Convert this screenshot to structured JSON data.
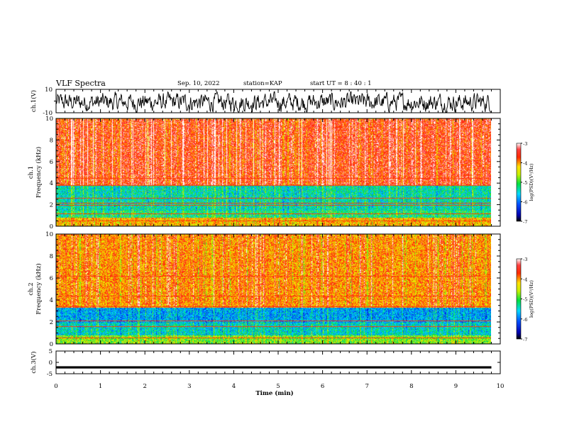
{
  "header": {
    "title": "VLF Spectra",
    "date": "Sep. 10, 2022",
    "station": "station=KAP",
    "start": "start UT =  8 : 40 : 1"
  },
  "chart_data": [
    {
      "type": "line",
      "panel": "ch1-waveform",
      "ylabel": "ch.1(V)",
      "ylim": [
        -10,
        10
      ],
      "ytick_labels": [
        "10",
        "-10"
      ],
      "x_range_min": [
        0,
        9.8
      ],
      "description_values": "noisy waveform fluctuating roughly between -9 and 7 V"
    },
    {
      "type": "heatmap",
      "panel": "ch1-spectrogram",
      "ylabel": "ch.1\nFrequency (kHz)",
      "ylim": [
        0,
        10
      ],
      "ytick_labels": [
        "0",
        "2",
        "4",
        "6",
        "8",
        "10"
      ],
      "colorbar": {
        "label": "log(PSD)(V²/Hz)",
        "range": [
          -7,
          -3
        ],
        "tick_labels": [
          "-3",
          "-4",
          "-5",
          "-6",
          "-7"
        ]
      },
      "bands": [
        {
          "f_from": 0,
          "f_to": 0.8,
          "level": -4.2
        },
        {
          "f_from": 0.8,
          "f_to": 1.5,
          "level": -5.2
        },
        {
          "f_from": 1.5,
          "f_to": 3.8,
          "level": -5.4
        },
        {
          "f_from": 3.8,
          "f_to": 10,
          "level": -3.6
        }
      ],
      "horizontal_lines_khz": [
        0.5,
        1.2,
        2.0,
        2.2,
        2.6,
        3.8,
        4.5
      ]
    },
    {
      "type": "heatmap",
      "panel": "ch2-spectrogram",
      "ylabel": "ch.2\nFrequency (kHz)",
      "ylim": [
        0,
        10
      ],
      "ytick_labels": [
        "0",
        "2",
        "4",
        "6",
        "8",
        "10"
      ],
      "colorbar": {
        "label": "log(PSD)(V²/Hz)",
        "range": [
          -7,
          -3
        ],
        "tick_labels": [
          "-3",
          "-4",
          "-5",
          "-6",
          "-7"
        ]
      },
      "bands": [
        {
          "f_from": 0,
          "f_to": 0.8,
          "level": -4.8
        },
        {
          "f_from": 0.8,
          "f_to": 2.0,
          "level": -5.5
        },
        {
          "f_from": 2.0,
          "f_to": 3.3,
          "level": -5.8
        },
        {
          "f_from": 3.3,
          "f_to": 10,
          "level": -4.0
        }
      ],
      "horizontal_lines_khz": [
        0.6,
        1.6,
        2.1,
        3.4,
        4.4,
        6.2
      ]
    },
    {
      "type": "line",
      "panel": "ch3-waveform",
      "ylabel": "ch.3(V)",
      "ylim": [
        -5,
        5
      ],
      "ytick_labels": [
        "5",
        "0",
        "-5"
      ],
      "xlabel": "Time (min)",
      "xlim": [
        0,
        10
      ],
      "xtick_labels": [
        "0",
        "1",
        "2",
        "3",
        "4",
        "5",
        "6",
        "7",
        "8",
        "9",
        "10"
      ],
      "band_center": -2.2,
      "band_halfwidth": 0.5,
      "x_end": 9.8
    }
  ]
}
